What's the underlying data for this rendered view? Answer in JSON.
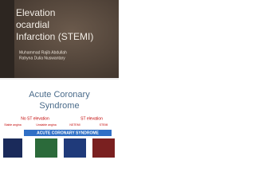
{
  "slides": [
    {
      "title_lines": [
        "Elevation",
        "ocardial",
        "Infarction (STEMI)"
      ],
      "authors": [
        "Muhammad Rajib Abdullah",
        "Rahyna Dulia Nuswantary"
      ]
    },
    {
      "title_lines": [
        "Acute Coronary",
        "Syndrome"
      ],
      "groups": [
        "No ST elevation",
        "ST elevation"
      ],
      "types": [
        "Stable angina",
        "Unstable angina",
        "NSTEMI",
        "STEMI"
      ],
      "banner": "ACUTE CORONARY SYNDROME"
    }
  ]
}
